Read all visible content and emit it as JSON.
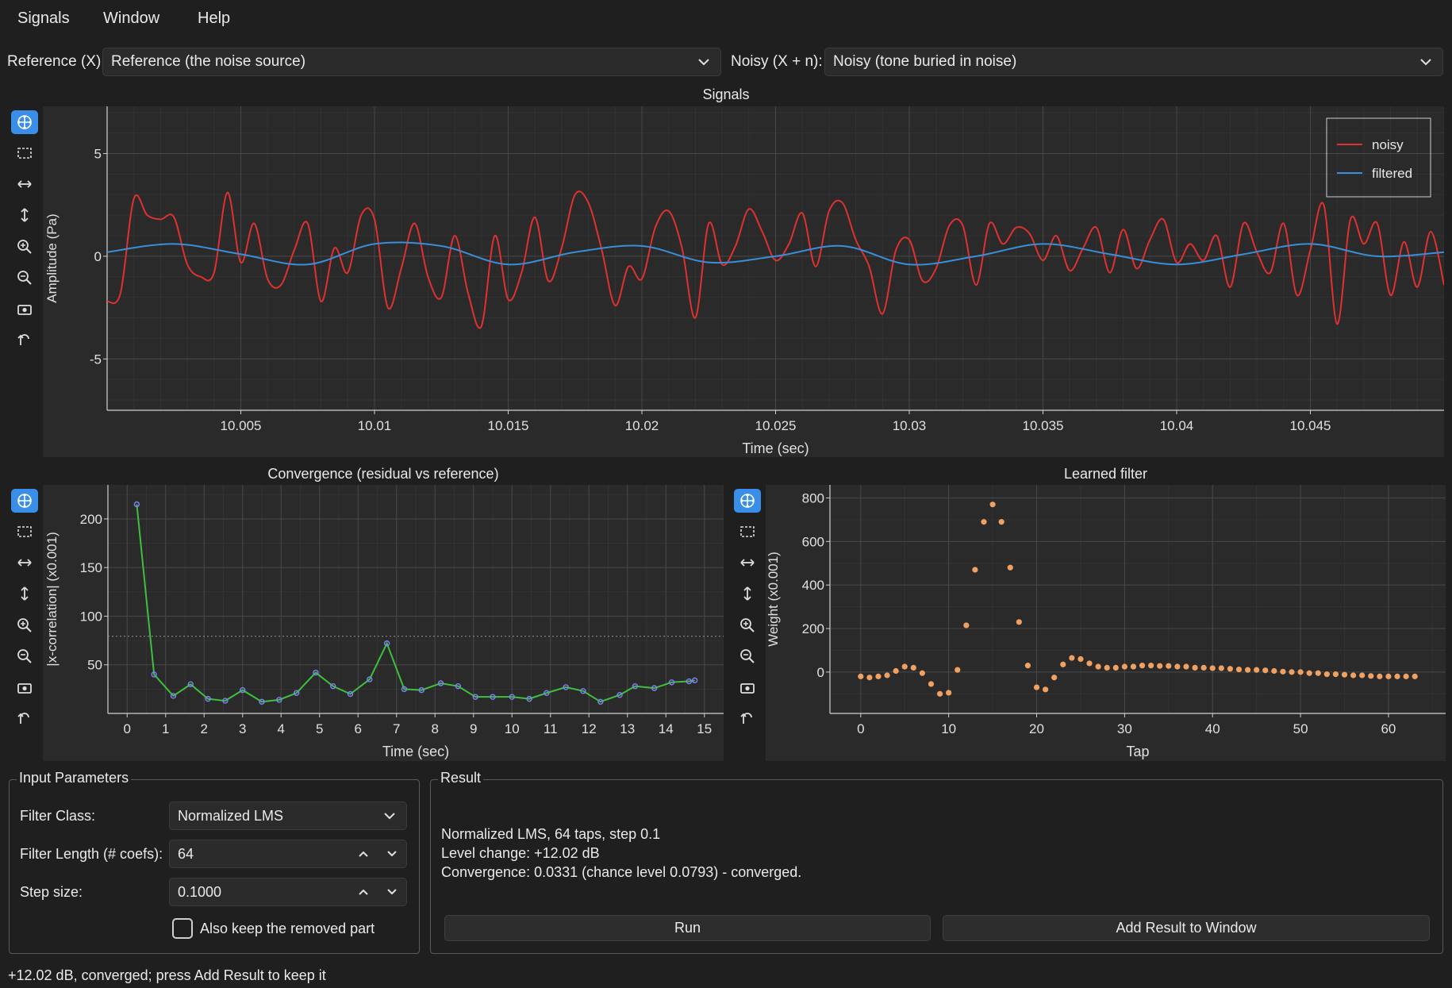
{
  "menu": {
    "items": [
      "Signals",
      "Window",
      "Help"
    ]
  },
  "selectors": {
    "reference_label": "Reference (X):",
    "reference_value": "Reference (the noise source)",
    "noisy_label": "Noisy (X + n):",
    "noisy_value": "Noisy (tone buried in noise)"
  },
  "toolbar_icons": [
    "pan-icon",
    "box-zoom-icon",
    "horizontal-zoom-icon",
    "vertical-zoom-icon",
    "zoom-in-icon",
    "zoom-out-icon",
    "fit-view-icon",
    "reset-view-icon"
  ],
  "colors": {
    "accent": "#3b8ee8",
    "noisy": "#e03030",
    "filtered": "#3a8ed8",
    "convergence_line": "#3fbf3f",
    "convergence_marker": "#8080ff",
    "filter_points": "#f0a060",
    "panel_bg": "#2a2a2a",
    "window_bg": "#1f1f1f"
  },
  "signals_plot": {
    "title": "Signals",
    "chart_data": {
      "type": "line",
      "xlabel": "Time (sec)",
      "ylabel": "Amplitude (Pa)",
      "xlim": [
        10.0,
        10.05
      ],
      "ylim": [
        -7.5,
        7.3
      ],
      "xticks": [
        10.005,
        10.01,
        10.015,
        10.02,
        10.025,
        10.03,
        10.035,
        10.04,
        10.045
      ],
      "xtick_labels": [
        "10.005",
        "10.01",
        "10.015",
        "10.02",
        "10.025",
        "10.03",
        "10.035",
        "10.04",
        "10.045"
      ],
      "yticks": [
        5,
        0,
        -5
      ],
      "ytick_labels": [
        "5",
        "0",
        "-5"
      ],
      "grid": true,
      "legend_position": "top-right",
      "series": [
        {
          "name": "noisy",
          "x": [
            10.0,
            10.0005,
            10.001,
            10.0015,
            10.002,
            10.0025,
            10.003,
            10.0035,
            10.004,
            10.0045,
            10.005,
            10.0055,
            10.006,
            10.0065,
            10.007,
            10.0075,
            10.008,
            10.0085,
            10.009,
            10.0095,
            10.01,
            10.0105,
            10.011,
            10.0115,
            10.012,
            10.0125,
            10.013,
            10.0135,
            10.014,
            10.0145,
            10.015,
            10.0155,
            10.016,
            10.0165,
            10.017,
            10.0175,
            10.018,
            10.0185,
            10.019,
            10.0195,
            10.02,
            10.0205,
            10.021,
            10.0215,
            10.022,
            10.0225,
            10.023,
            10.0235,
            10.024,
            10.0245,
            10.025,
            10.0255,
            10.026,
            10.0265,
            10.027,
            10.0275,
            10.028,
            10.0285,
            10.029,
            10.0295,
            10.03,
            10.0305,
            10.031,
            10.0315,
            10.032,
            10.0325,
            10.033,
            10.0335,
            10.034,
            10.0345,
            10.035,
            10.0355,
            10.036,
            10.0365,
            10.037,
            10.0375,
            10.038,
            10.0385,
            10.039,
            10.0395,
            10.04,
            10.0405,
            10.041,
            10.0415,
            10.042,
            10.0425,
            10.043,
            10.0435,
            10.044,
            10.0445,
            10.045,
            10.0455,
            10.046,
            10.0465,
            10.047,
            10.0475,
            10.048,
            10.0485,
            10.049,
            10.0495,
            10.05
          ],
          "values": [
            -2.2,
            -1.8,
            2.8,
            2.0,
            1.8,
            1.9,
            -0.4,
            -1.0,
            -0.8,
            3.1,
            -0.3,
            1.6,
            -1.1,
            -1.4,
            0.3,
            1.6,
            -2.2,
            0.4,
            -0.8,
            2.0,
            1.8,
            -2.5,
            -0.6,
            1.6,
            -1.0,
            -2.0,
            1.0,
            -1.8,
            -3.4,
            1.0,
            -2.1,
            -0.8,
            1.9,
            -1.2,
            0.4,
            3.0,
            2.6,
            0.3,
            -2.4,
            -0.5,
            -1.1,
            1.4,
            2.2,
            0.4,
            -3.0,
            1.6,
            -0.4,
            0.5,
            2.3,
            1.2,
            -0.2,
            0.6,
            2.1,
            -0.5,
            2.2,
            2.6,
            0.8,
            -0.5,
            -2.8,
            0.3,
            0.8,
            -1.2,
            -0.6,
            1.5,
            1.5,
            -1.4,
            1.6,
            0.6,
            1.4,
            1.1,
            -0.2,
            1.0,
            -0.7,
            0.4,
            1.4,
            -0.8,
            1.3,
            -0.6,
            0.8,
            1.8,
            -0.3,
            0.6,
            -0.2,
            1.0,
            -1.5,
            1.6,
            0.2,
            -0.8,
            1.6,
            -1.9,
            0.3,
            2.5,
            -3.3,
            1.8,
            0.6,
            1.6,
            -1.9,
            0.7,
            -1.5,
            1.2,
            -1.4
          ]
        },
        {
          "name": "filtered",
          "x": [
            10.0,
            10.0025,
            10.005,
            10.0075,
            10.01,
            10.0125,
            10.015,
            10.0175,
            10.02,
            10.0225,
            10.025,
            10.0275,
            10.03,
            10.0325,
            10.035,
            10.0375,
            10.04,
            10.0425,
            10.045,
            10.0475,
            10.05
          ],
          "values": [
            0.2,
            0.6,
            0.1,
            -0.4,
            0.6,
            0.5,
            -0.4,
            0.2,
            0.5,
            -0.3,
            0.0,
            0.5,
            -0.4,
            0.0,
            0.6,
            0.1,
            -0.4,
            0.1,
            0.6,
            0.0,
            0.2
          ]
        }
      ]
    }
  },
  "convergence_plot": {
    "title": "Convergence (residual vs reference)",
    "chart_data": {
      "type": "line",
      "xlabel": "Time (sec)",
      "ylabel": "|x-correlation| (x0.001)",
      "xlim": [
        -0.5,
        15.5
      ],
      "ylim": [
        0,
        235
      ],
      "xticks": [
        0,
        1,
        2,
        3,
        4,
        5,
        6,
        7,
        8,
        9,
        10,
        11,
        12,
        13,
        14,
        15
      ],
      "xtick_labels": [
        "0",
        "1",
        "2",
        "3",
        "4",
        "5",
        "6",
        "7",
        "8",
        "9",
        "10",
        "11",
        "12",
        "13",
        "14",
        "15"
      ],
      "yticks": [
        50,
        100,
        150,
        200
      ],
      "ytick_labels": [
        "50",
        "100",
        "150",
        "200"
      ],
      "chance_level": 79.3,
      "grid": true,
      "series": [
        {
          "x": [
            0.25,
            0.7,
            1.2,
            1.65,
            2.1,
            2.55,
            3.0,
            3.5,
            3.95,
            4.4,
            4.9,
            5.35,
            5.8,
            6.3,
            6.75,
            7.2,
            7.65,
            8.15,
            8.6,
            9.05,
            9.5,
            10.0,
            10.45,
            10.9,
            11.4,
            11.85,
            12.3,
            12.8,
            13.2,
            13.7,
            14.15,
            14.6,
            14.75
          ],
          "values": [
            215,
            40,
            18,
            30,
            15,
            13,
            24,
            12,
            14,
            21,
            42,
            28,
            20,
            35,
            72,
            25,
            24,
            31,
            28,
            17,
            17,
            17,
            15,
            21,
            27,
            23,
            12,
            19,
            28,
            26,
            32,
            33,
            34
          ]
        }
      ]
    }
  },
  "filter_plot": {
    "title": "Learned filter",
    "chart_data": {
      "type": "scatter",
      "xlabel": "Tap",
      "ylabel": "Weight (x0.001)",
      "xlim": [
        -3.5,
        66.5
      ],
      "ylim": [
        -190,
        860
      ],
      "xticks": [
        0,
        10,
        20,
        30,
        40,
        50,
        60
      ],
      "xtick_labels": [
        "0",
        "10",
        "20",
        "30",
        "40",
        "50",
        "60"
      ],
      "yticks": [
        0,
        200,
        400,
        600,
        800
      ],
      "ytick_labels": [
        "0",
        "200",
        "400",
        "600",
        "800"
      ],
      "grid": true,
      "series": [
        {
          "x": [
            0,
            1,
            2,
            3,
            4,
            5,
            6,
            7,
            8,
            9,
            10,
            11,
            12,
            13,
            14,
            15,
            16,
            17,
            18,
            19,
            20,
            21,
            22,
            23,
            24,
            25,
            26,
            27,
            28,
            29,
            30,
            31,
            32,
            33,
            34,
            35,
            36,
            37,
            38,
            39,
            40,
            41,
            42,
            43,
            44,
            45,
            46,
            47,
            48,
            49,
            50,
            51,
            52,
            53,
            54,
            55,
            56,
            57,
            58,
            59,
            60,
            61,
            62,
            63
          ],
          "values": [
            -20,
            -25,
            -20,
            -15,
            5,
            25,
            20,
            -5,
            -55,
            -100,
            -95,
            10,
            215,
            470,
            690,
            770,
            690,
            480,
            230,
            30,
            -70,
            -80,
            -25,
            35,
            65,
            60,
            40,
            25,
            20,
            20,
            25,
            25,
            30,
            30,
            28,
            28,
            25,
            25,
            20,
            20,
            18,
            18,
            15,
            12,
            10,
            10,
            8,
            5,
            2,
            0,
            0,
            -5,
            -5,
            -10,
            -10,
            -12,
            -15,
            -15,
            -18,
            -20,
            -20,
            -20,
            -20,
            -20
          ]
        }
      ]
    }
  },
  "input_parameters": {
    "title": "Input Parameters",
    "filter_class_label": "Filter Class:",
    "filter_class_value": "Normalized LMS",
    "filter_length_label": "Filter Length (# coefs):",
    "filter_length_value": "64",
    "step_size_label": "Step size:",
    "step_size_value": "0.1000",
    "keep_removed_label": "Also keep the removed part",
    "keep_removed_checked": false
  },
  "result": {
    "title": "Result",
    "line1": "Normalized LMS, 64 taps, step 0.1",
    "line2": "Level change: +12.02 dB",
    "line3": "Convergence: 0.0331 (chance level 0.0793) - converged.",
    "run_label": "Run",
    "add_label": "Add Result to Window"
  },
  "status_bar": {
    "text": "+12.02 dB, converged; press Add Result to keep it"
  }
}
